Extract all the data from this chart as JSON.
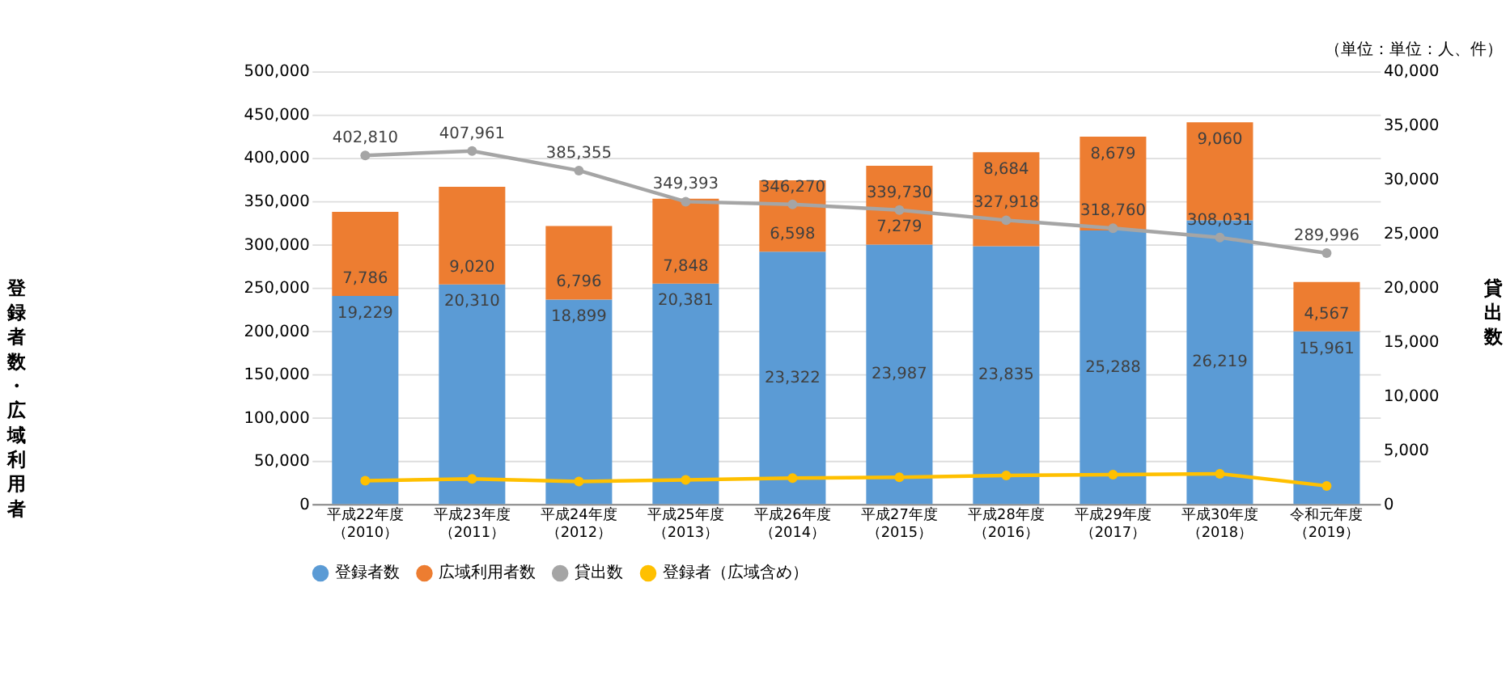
{
  "chart_data": {
    "type": "bar",
    "annotations": [
      "（単位：単位：人、件）"
    ],
    "ylabel": "登録者数・広域利用者",
    "y2label": "貸出数",
    "categories": [
      "平成22年度（2010）",
      "平成23年度（2011）",
      "平成24年度（2012）",
      "平成25年度（2013）",
      "平成26年度（2014）",
      "平成27年度（2015）",
      "平成28年度（2016）",
      "平成29年度（2017）",
      "平成30年度（2018）",
      "令和元年度（2019）"
    ],
    "stacked": true,
    "ylim": [
      0,
      500000
    ],
    "yticks": [
      0,
      {
        "value": 50000,
        "label": "50,000"
      },
      {
        "value": 100000,
        "label": "100,000"
      },
      {
        "value": 150000,
        "label": "150,000"
      },
      {
        "value": 200000,
        "label": "200,000"
      },
      {
        "value": 250000,
        "label": "250,000"
      },
      {
        "value": 300000,
        "label": "300,000"
      },
      {
        "value": 350000,
        "label": "350,000"
      },
      {
        "value": 400000,
        "label": "400,000"
      },
      {
        "value": 450000,
        "label": "450,000"
      },
      {
        "value": 500000,
        "label": "500,000"
      }
    ],
    "y2lim": [
      0,
      40000
    ],
    "y2ticks": [
      0,
      {
        "value": 5000,
        "label": "5,000"
      },
      {
        "value": 10000,
        "label": "10,000"
      },
      {
        "value": 15000,
        "label": "15,000"
      },
      {
        "value": 20000,
        "label": "20,000"
      },
      {
        "value": 25000,
        "label": "25,000"
      },
      {
        "value": 30000,
        "label": "30,000"
      },
      {
        "value": 35000,
        "label": "35,000"
      },
      {
        "value": 40000,
        "label": "40,000"
      }
    ],
    "grid": "y",
    "legend": "bottom",
    "marker": "circle",
    "line_style": "solid",
    "series": [
      {
        "name": "登録者数",
        "axis": "y2",
        "color": "#5b9bd5",
        "values": [
          19229,
          20310,
          18899,
          20381,
          23322,
          23987,
          23835,
          25288,
          26219,
          15961
        ],
        "value_labels": [
          "19,229",
          "20,310",
          "18,899",
          "20,381",
          "23,322",
          "23,987",
          "23,835",
          "25,288",
          "26,219",
          "15,961"
        ]
      },
      {
        "name": "広域利用者数",
        "axis": "y2",
        "color": "#ed7d31",
        "values": [
          7786,
          9020,
          6796,
          7848,
          6598,
          7279,
          8684,
          8679,
          9060,
          4567
        ],
        "value_labels": [
          "7,786",
          "9,020",
          "6,796",
          "7,848",
          "6,598",
          "7,279",
          "8,684",
          "8,679",
          "9,060",
          "4,567"
        ]
      },
      {
        "name": "貸出数",
        "type": "line",
        "axis": "y",
        "color": "#a5a5a5",
        "values": [
          402810,
          407961,
          385355,
          349393,
          346270,
          339730,
          327918,
          318760,
          308031,
          289996
        ],
        "value_labels": [
          "402,810",
          "407,961",
          "385,355",
          "349,393",
          "346,270",
          "339,730",
          "327,918",
          "318,760",
          "308,031",
          "289,996"
        ]
      },
      {
        "name": "登録者（広域含め）",
        "type": "line",
        "axis": "y",
        "color": "#ffc000",
        "values": [
          27000,
          29000,
          26000,
          28000,
          30000,
          31000,
          33000,
          34000,
          35000,
          21000
        ]
      }
    ]
  }
}
